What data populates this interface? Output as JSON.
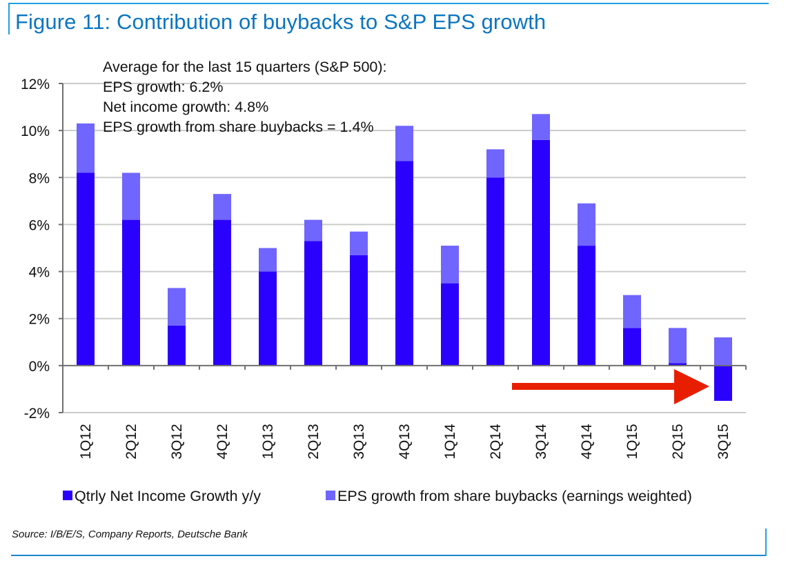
{
  "figure": {
    "title": "Figure 11: Contribution of buybacks to S&P EPS growth",
    "source": "Source: I/B/E/S, Company Reports, Deutsche Bank",
    "frame_color": "#1ea0e0"
  },
  "chart_data": {
    "type": "bar",
    "stacked": true,
    "title": "Contribution of buybacks to S&P EPS growth",
    "xlabel": "",
    "ylabel": "",
    "ylim": [
      -2,
      12
    ],
    "yticks": [
      -2,
      0,
      2,
      4,
      6,
      8,
      10,
      12
    ],
    "ytick_labels": [
      "-2%",
      "0%",
      "2%",
      "4%",
      "6%",
      "8%",
      "10%",
      "12%"
    ],
    "grid": true,
    "legend_position": "bottom",
    "categories": [
      "1Q12",
      "2Q12",
      "3Q12",
      "4Q12",
      "1Q13",
      "2Q13",
      "3Q13",
      "4Q13",
      "1Q14",
      "2Q14",
      "3Q14",
      "4Q14",
      "1Q15",
      "2Q15",
      "3Q15"
    ],
    "series": [
      {
        "name": "Qtrly Net Income Growth y/y",
        "color": "#2a00ff",
        "values": [
          8.2,
          6.2,
          1.7,
          6.2,
          4.0,
          5.3,
          4.7,
          8.7,
          3.5,
          8.0,
          9.6,
          5.1,
          1.6,
          0.1,
          -1.5
        ]
      },
      {
        "name": "EPS growth from share buybacks (earnings weighted)",
        "color": "#7065ff",
        "values": [
          2.1,
          2.0,
          1.6,
          1.1,
          1.0,
          0.9,
          1.0,
          1.5,
          1.6,
          1.2,
          1.1,
          1.8,
          1.4,
          1.5,
          1.2
        ]
      }
    ],
    "annotation": {
      "lines": [
        "Average for the last 15 quarters (S&P 500):",
        "EPS growth: 6.2%",
        "Net income growth: 4.8%",
        "EPS growth from share buybacks =  1.4%"
      ],
      "averages": {
        "eps_growth": 6.2,
        "net_income_growth": 4.8,
        "eps_growth_from_buybacks": 1.4
      }
    },
    "highlight_arrow": {
      "points_to": "3Q15",
      "color": "#e81e00"
    }
  }
}
